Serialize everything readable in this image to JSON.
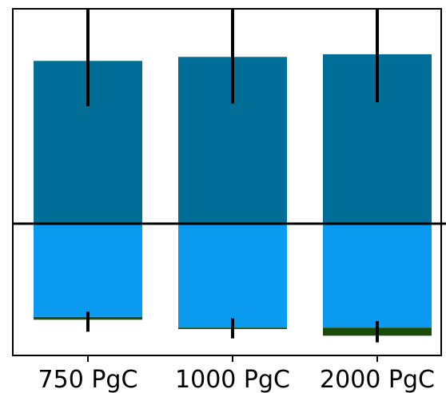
{
  "chart_data": {
    "type": "bar",
    "categories": [
      "750 PgC",
      "1000 PgC",
      "2000 PgC"
    ],
    "zero_line": 0,
    "ylim": [
      -1.05,
      1.6
    ],
    "series": [
      {
        "values": [
          1.22,
          1.25,
          1.27
        ],
        "color": "#006e96",
        "error_bars": [
          [
            0.88,
            1.62
          ],
          [
            0.9,
            1.62
          ],
          [
            0.91,
            1.62
          ]
        ]
      },
      {
        "values": [
          -0.7,
          -0.78,
          -0.78
        ],
        "color": "#0a9bf0",
        "error_bars": null
      },
      {
        "values": [
          -0.02,
          -0.01,
          -0.06
        ],
        "color": "#1b4a0a",
        "error_bars": [
          [
            -0.81,
            -0.66
          ],
          [
            -0.86,
            -0.71
          ],
          [
            -0.89,
            -0.73
          ]
        ]
      }
    ],
    "grid": false,
    "legend": "none"
  }
}
